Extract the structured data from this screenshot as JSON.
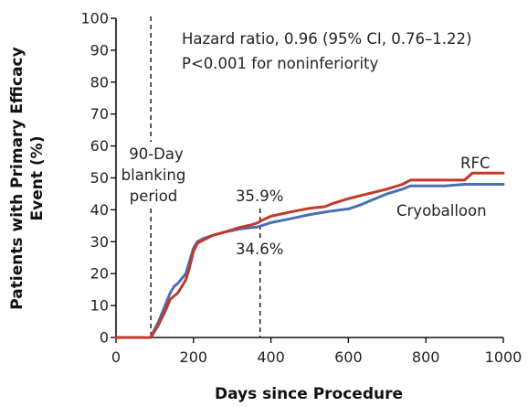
{
  "chart_data": {
    "type": "line",
    "xlabel": "Days since Procedure",
    "ylabel": "Patients with Primary Efficacy Event (%)",
    "ylabel_lines": [
      "Patients with Primary Efficacy",
      "Event (%)"
    ],
    "xlim": [
      0,
      1000
    ],
    "ylim": [
      0,
      100
    ],
    "x_ticks": [
      0,
      200,
      400,
      600,
      800,
      1000
    ],
    "y_ticks": [
      0,
      10,
      20,
      30,
      40,
      50,
      60,
      70,
      80,
      90,
      100
    ],
    "grid": false,
    "colors": {
      "RFC": "#c0392b",
      "Cryoballoon": "#4a6fb5",
      "axis": "#111111",
      "text": "#222222"
    },
    "series": [
      {
        "name": "RFC",
        "color": "#c0392b",
        "x": [
          0,
          90,
          95,
          110,
          130,
          140,
          150,
          160,
          170,
          180,
          190,
          200,
          210,
          225,
          250,
          280,
          320,
          350,
          365,
          375,
          400,
          450,
          500,
          540,
          560,
          600,
          650,
          700,
          740,
          760,
          800,
          850,
          900,
          920,
          1000
        ],
        "y": [
          0,
          0,
          1,
          4,
          9,
          12,
          13,
          14,
          16,
          18,
          22,
          27,
          29.5,
          30.5,
          32,
          33,
          34.5,
          35.3,
          35.9,
          36.6,
          38,
          39.3,
          40.5,
          41,
          42,
          43.5,
          45,
          46.5,
          48,
          49.3,
          49.3,
          49.3,
          49.3,
          51.5,
          51.5
        ]
      },
      {
        "name": "Cryoballoon",
        "color": "#4a6fb5",
        "x": [
          0,
          90,
          95,
          110,
          120,
          130,
          140,
          150,
          160,
          170,
          180,
          190,
          200,
          210,
          225,
          250,
          280,
          320,
          350,
          365,
          400,
          450,
          500,
          550,
          600,
          630,
          660,
          700,
          740,
          760,
          800,
          850,
          900,
          1000
        ],
        "y": [
          0,
          0,
          1.5,
          5,
          8,
          11,
          14,
          16,
          17,
          18.5,
          20,
          24,
          28,
          30,
          31,
          32,
          33,
          34,
          34.4,
          34.6,
          36,
          37.2,
          38.5,
          39.5,
          40.3,
          41.5,
          43,
          45,
          46.5,
          47.5,
          47.5,
          47.5,
          48,
          48
        ]
      }
    ],
    "annotations": {
      "hazard_line1": "Hazard ratio, 0.96 (95% CI, 0.76–1.22)",
      "hazard_line2": "P<0.001 for noninferiority",
      "blanking_line1": "90-Day",
      "blanking_line2": "blanking",
      "blanking_line3": "period",
      "rfc_value_label": "35.9%",
      "cryo_value_label": "34.6%",
      "rfc_series_label": "RFC",
      "cryo_series_label": "Cryoballoon"
    },
    "reference_lines_x": [
      90,
      372
    ]
  }
}
